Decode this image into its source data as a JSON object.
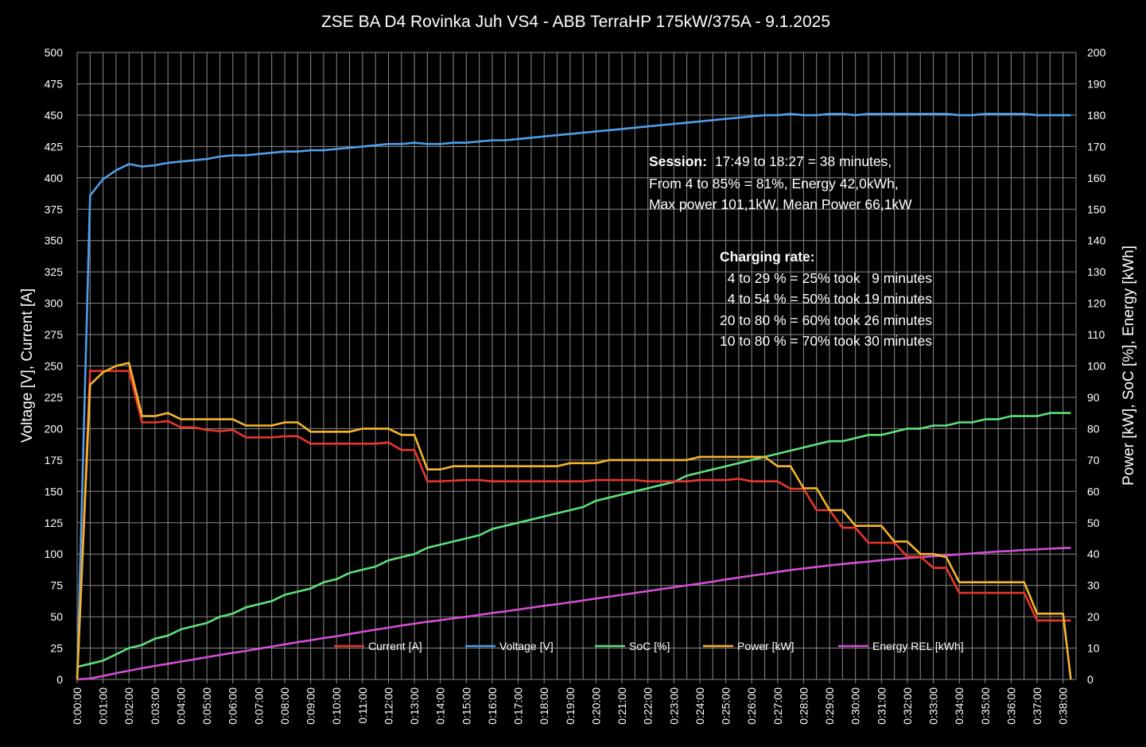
{
  "chart_data": {
    "type": "line",
    "title": "ZSE BA D4 Rovinka Juh VS4 - ABB TerraHP 175kW/375A - 9.1.2025",
    "ylabel_left": "Voltage [V], Current [A]",
    "ylabel_right": "Power [kW], SoC [%], Energy [kWh]",
    "ylim_left": [
      0,
      500
    ],
    "ylim_right": [
      0,
      200
    ],
    "yticks_left": [
      "0",
      "25",
      "50",
      "75",
      "100",
      "125",
      "150",
      "175",
      "200",
      "225",
      "250",
      "275",
      "300",
      "325",
      "350",
      "375",
      "400",
      "425",
      "450",
      "475",
      "500"
    ],
    "yticks_right": [
      "0",
      "10",
      "20",
      "30",
      "40",
      "50",
      "60",
      "70",
      "80",
      "90",
      "100",
      "110",
      "120",
      "130",
      "140",
      "150",
      "160",
      "170",
      "180",
      "190",
      "200"
    ],
    "xlim_minutes": [
      0,
      38.5
    ],
    "xticks": [
      "0:00:00",
      "0:01:00",
      "0:02:00",
      "0:03:00",
      "0:04:00",
      "0:05:00",
      "0:06:00",
      "0:07:00",
      "0:08:00",
      "0:09:00",
      "0:10:00",
      "0:11:00",
      "0:12:00",
      "0:13:00",
      "0:14:00",
      "0:15:00",
      "0:16:00",
      "0:17:00",
      "0:18:00",
      "0:19:00",
      "0:20:00",
      "0:21:00",
      "0:22:00",
      "0:23:00",
      "0:24:00",
      "0:25:00",
      "0:26:00",
      "0:27:00",
      "0:28:00",
      "0:29:00",
      "0:30:00",
      "0:31:00",
      "0:32:00",
      "0:33:00",
      "0:34:00",
      "0:35:00",
      "0:36:00",
      "0:37:00",
      "0:38:00"
    ],
    "grid": true,
    "legend_position": "bottom-center",
    "series": [
      {
        "name": "Current [A]",
        "axis": "left",
        "color": "#e8372c",
        "x": [
          0,
          0.5,
          2,
          2.5,
          3,
          3.5,
          4,
          4.5,
          5,
          5.5,
          6,
          6.5,
          7,
          7.5,
          8,
          8.5,
          9,
          9.5,
          10,
          10.5,
          11,
          11.5,
          12,
          12.5,
          13,
          13.5,
          14,
          15,
          15.5,
          16,
          17,
          18,
          19,
          19.5,
          20,
          21,
          21.5,
          22,
          23,
          23.5,
          24,
          25,
          25.5,
          26,
          27,
          27.5,
          28,
          28.5,
          29,
          29.5,
          30,
          30.5,
          31,
          31.5,
          32,
          32.5,
          33,
          33.5,
          34,
          34.5,
          35,
          35.5,
          36,
          36.5,
          37,
          37.5,
          38,
          38.3
        ],
        "y": [
          0,
          246,
          246,
          205,
          205,
          206,
          201,
          201,
          199,
          198,
          199,
          193,
          193,
          193,
          194,
          194,
          188,
          188,
          188,
          188,
          188,
          188,
          189,
          183,
          183,
          158,
          158,
          159,
          159,
          158,
          158,
          158,
          158,
          158,
          159,
          159,
          159,
          158,
          158,
          158,
          159,
          159,
          160,
          158,
          158,
          152,
          152,
          135,
          135,
          121,
          121,
          109,
          109,
          109,
          98,
          98,
          89,
          89,
          69,
          69,
          69,
          69,
          69,
          69,
          47,
          47,
          47,
          47
        ]
      },
      {
        "name": "Voltage [V]",
        "axis": "left",
        "color": "#4f9fe8",
        "x": [
          0,
          0.5,
          1,
          1.5,
          2,
          2.5,
          3,
          3.5,
          4,
          4.5,
          5,
          5.5,
          6,
          6.5,
          7,
          7.5,
          8,
          8.5,
          9,
          9.5,
          10,
          10.5,
          11,
          11.5,
          12,
          12.5,
          13,
          13.5,
          14,
          14.5,
          15,
          15.5,
          16,
          16.5,
          17,
          17.5,
          18,
          18.5,
          19,
          19.5,
          20,
          20.5,
          21,
          21.5,
          22,
          22.5,
          23,
          23.5,
          24,
          24.5,
          25,
          25.5,
          26,
          26.5,
          27,
          27.5,
          28,
          28.5,
          29,
          29.5,
          30,
          30.5,
          31,
          31.5,
          32,
          32.5,
          33,
          33.5,
          34,
          34.5,
          35,
          35.5,
          36,
          36.5,
          37,
          37.5,
          38,
          38.3
        ],
        "y": [
          0,
          386,
          399,
          406,
          411,
          409,
          410,
          412,
          413,
          414,
          415,
          417,
          418,
          418,
          419,
          420,
          421,
          421,
          422,
          422,
          423,
          424,
          425,
          426,
          427,
          427,
          428,
          427,
          427,
          428,
          428,
          429,
          430,
          430,
          431,
          432,
          433,
          434,
          435,
          436,
          437,
          438,
          439,
          440,
          441,
          442,
          443,
          444,
          445,
          446,
          447,
          448,
          449,
          450,
          450,
          451,
          450,
          450,
          451,
          451,
          450,
          451,
          451,
          451,
          451,
          451,
          451,
          451,
          450,
          450,
          451,
          451,
          451,
          451,
          450,
          450,
          450,
          450
        ]
      },
      {
        "name": "SoC [%]",
        "axis": "right",
        "color": "#5ee07a",
        "x": [
          0,
          0.5,
          1,
          1.5,
          2,
          2.5,
          3,
          3.5,
          4,
          4.5,
          5,
          5.5,
          6,
          6.5,
          7,
          7.5,
          8,
          8.5,
          9,
          9.5,
          10,
          10.5,
          11,
          11.5,
          12,
          12.5,
          13,
          13.5,
          14,
          14.5,
          15,
          15.5,
          16,
          16.5,
          17,
          17.5,
          18,
          18.5,
          19,
          19.5,
          20,
          20.5,
          21,
          21.5,
          22,
          22.5,
          23,
          23.5,
          24,
          24.5,
          25,
          25.5,
          26,
          26.5,
          27,
          27.5,
          28,
          28.5,
          29,
          29.5,
          30,
          30.5,
          31,
          31.5,
          32,
          32.5,
          33,
          33.5,
          34,
          34.5,
          35,
          35.5,
          36,
          36.5,
          37,
          37.5,
          38,
          38.3
        ],
        "y": [
          4,
          5,
          6,
          8,
          10,
          11,
          13,
          14,
          16,
          17,
          18,
          20,
          21,
          23,
          24,
          25,
          27,
          28,
          29,
          31,
          32,
          34,
          35,
          36,
          38,
          39,
          40,
          42,
          43,
          44,
          45,
          46,
          48,
          49,
          50,
          51,
          52,
          53,
          54,
          55,
          57,
          58,
          59,
          60,
          61,
          62,
          63,
          65,
          66,
          67,
          68,
          69,
          70,
          71,
          72,
          73,
          74,
          75,
          76,
          76,
          77,
          78,
          78,
          79,
          80,
          80,
          81,
          81,
          82,
          82,
          83,
          83,
          84,
          84,
          84,
          85,
          85,
          85
        ]
      },
      {
        "name": "Power [kW]",
        "axis": "right",
        "color": "#f5b62a",
        "x": [
          0,
          0.5,
          1,
          1.5,
          2,
          2.5,
          3,
          3.5,
          4,
          4.5,
          5,
          5.5,
          6,
          6.5,
          7,
          7.5,
          8,
          8.5,
          9,
          9.5,
          10,
          10.5,
          11,
          11.5,
          12,
          12.5,
          13,
          13.5,
          14,
          14.5,
          15,
          15.5,
          16,
          16.5,
          17,
          17.5,
          18,
          18.5,
          19,
          19.5,
          20,
          20.5,
          21,
          21.5,
          22,
          22.5,
          23,
          23.5,
          24,
          24.5,
          25,
          25.5,
          26,
          26.5,
          27,
          27.5,
          28,
          28.5,
          29,
          29.5,
          30,
          30.5,
          31,
          31.5,
          32,
          32.5,
          33,
          33.5,
          34,
          34.5,
          35,
          35.5,
          36,
          36.5,
          37,
          37.5,
          38,
          38.3
        ],
        "y": [
          0,
          94,
          98,
          100,
          101,
          84,
          84,
          85,
          83,
          83,
          83,
          83,
          83,
          81,
          81,
          81,
          82,
          82,
          79,
          79,
          79,
          79,
          80,
          80,
          80,
          78,
          78,
          67,
          67,
          68,
          68,
          68,
          68,
          68,
          68,
          68,
          68,
          68,
          69,
          69,
          69,
          70,
          70,
          70,
          70,
          70,
          70,
          70,
          71,
          71,
          71,
          71,
          71,
          71,
          68,
          68,
          61,
          61,
          54,
          54,
          49,
          49,
          49,
          44,
          44,
          40,
          40,
          39,
          31,
          31,
          31,
          31,
          31,
          31,
          21,
          21,
          21,
          0
        ]
      },
      {
        "name": "Energy REL [kWh]",
        "axis": "right",
        "color": "#d24fd4",
        "x": [
          0,
          0.5,
          1,
          1.5,
          2,
          2.5,
          3,
          3.5,
          4,
          4.5,
          5,
          5.5,
          6,
          6.5,
          7,
          7.5,
          8,
          8.5,
          9,
          9.5,
          10,
          10.5,
          11,
          11.5,
          12,
          12.5,
          13,
          13.5,
          14,
          14.5,
          15,
          15.5,
          16,
          16.5,
          17,
          17.5,
          18,
          18.5,
          19,
          19.5,
          20,
          20.5,
          21,
          21.5,
          22,
          22.5,
          23,
          23.5,
          24,
          24.5,
          25,
          25.5,
          26,
          26.5,
          27,
          27.5,
          28,
          28.5,
          29,
          29.5,
          30,
          30.5,
          31,
          31.5,
          32,
          32.5,
          33,
          33.5,
          34,
          34.5,
          35,
          35.5,
          36,
          36.5,
          37,
          37.5,
          38,
          38.3
        ],
        "y": [
          0,
          0.3,
          1.1,
          2.0,
          2.8,
          3.6,
          4.3,
          5.0,
          5.7,
          6.4,
          7.1,
          7.8,
          8.5,
          9.1,
          9.8,
          10.5,
          11.2,
          11.9,
          12.5,
          13.2,
          13.8,
          14.5,
          15.2,
          15.9,
          16.5,
          17.2,
          17.8,
          18.4,
          18.9,
          19.5,
          20.0,
          20.6,
          21.2,
          21.7,
          22.3,
          22.9,
          23.5,
          24.0,
          24.6,
          25.2,
          25.8,
          26.4,
          27.0,
          27.6,
          28.2,
          28.8,
          29.4,
          30.0,
          30.6,
          31.2,
          31.9,
          32.5,
          33.1,
          33.7,
          34.3,
          34.9,
          35.4,
          35.9,
          36.4,
          36.8,
          37.2,
          37.6,
          38.0,
          38.4,
          38.7,
          39.0,
          39.3,
          39.6,
          39.9,
          40.2,
          40.5,
          40.8,
          41.0,
          41.3,
          41.5,
          41.7,
          41.9,
          42.0
        ]
      }
    ],
    "annotations": {
      "session": {
        "line1_label": "Session:",
        "line1_value": "17:49 to 18:27 = 38 minutes,",
        "line2": "From 4 to 85% = 81%, Energy 42,0kWh,",
        "line3": "Max power 101,1kW, Mean Power 66,1kW"
      },
      "charging_rate": {
        "heading": "Charging rate:",
        "lines": [
          "  4 to 29 % = 25% took   9 minutes",
          "  4 to 54 % = 50% took 19 minutes",
          "20 to 80 % = 60% took 26 minutes",
          "10 to 80 % = 70% took 30 minutes"
        ]
      }
    }
  },
  "colors": {
    "background": "#000000",
    "grid": "#8a8a8a",
    "text": "#ffffff"
  }
}
